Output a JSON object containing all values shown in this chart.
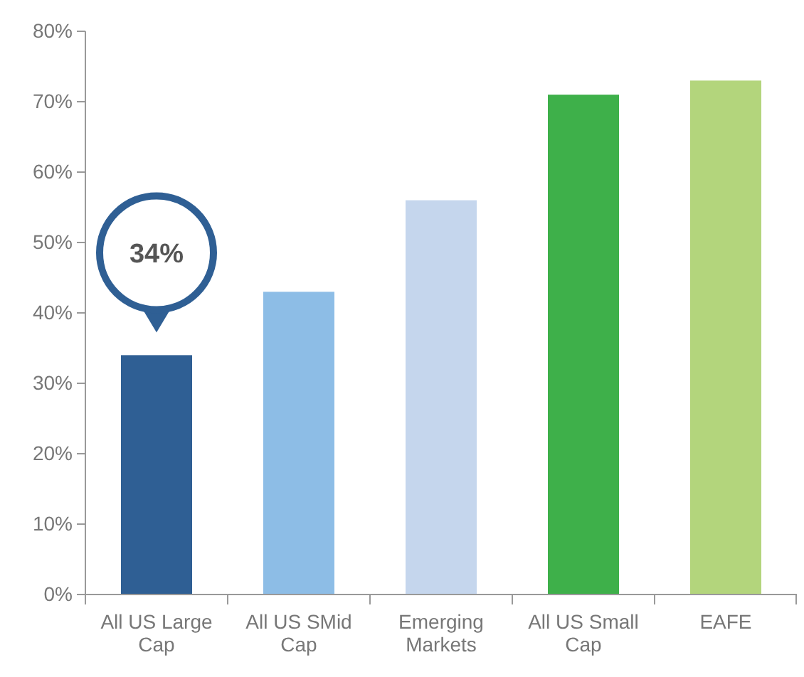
{
  "chart_data": {
    "type": "bar",
    "categories": [
      "All US Large Cap",
      "All US SMid Cap",
      "Emerging Markets",
      "All US Small Cap",
      "EAFE"
    ],
    "values": [
      34,
      43,
      56,
      71,
      73
    ],
    "colors": [
      "#2f5f94",
      "#8dbde6",
      "#c5d6ed",
      "#3eb04a",
      "#b3d57c"
    ],
    "value_labels": [
      "34%",
      null,
      null,
      null,
      null
    ],
    "ylim": [
      0,
      80
    ],
    "yticks": [
      {
        "value": 0,
        "label": "0%"
      },
      {
        "value": 10,
        "label": "10%"
      },
      {
        "value": 20,
        "label": "20%"
      },
      {
        "value": 30,
        "label": "30%"
      },
      {
        "value": 40,
        "label": "40%"
      },
      {
        "value": 50,
        "label": "50%"
      },
      {
        "value": 60,
        "label": "60%"
      },
      {
        "value": 70,
        "label": "70%"
      },
      {
        "value": 80,
        "label": "80%"
      }
    ],
    "tick_labels": true
  }
}
